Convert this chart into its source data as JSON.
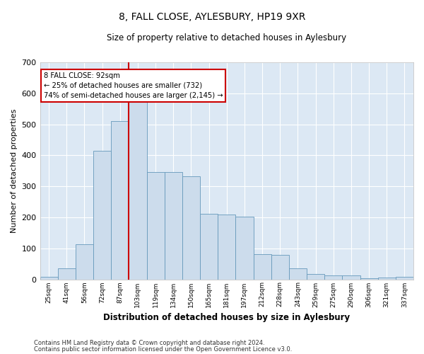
{
  "title": "8, FALL CLOSE, AYLESBURY, HP19 9XR",
  "subtitle": "Size of property relative to detached houses in Aylesbury",
  "xlabel": "Distribution of detached houses by size in Aylesbury",
  "ylabel": "Number of detached properties",
  "bar_color": "#ccdcec",
  "bar_edgecolor": "#6699bb",
  "background_color": "#dce8f4",
  "grid_color": "#ffffff",
  "categories": [
    "25sqm",
    "41sqm",
    "56sqm",
    "72sqm",
    "87sqm",
    "103sqm",
    "119sqm",
    "134sqm",
    "150sqm",
    "165sqm",
    "181sqm",
    "197sqm",
    "212sqm",
    "228sqm",
    "243sqm",
    "259sqm",
    "275sqm",
    "290sqm",
    "306sqm",
    "321sqm",
    "337sqm"
  ],
  "values": [
    8,
    35,
    113,
    415,
    510,
    575,
    345,
    345,
    333,
    212,
    210,
    203,
    80,
    78,
    35,
    18,
    12,
    12,
    3,
    5,
    8
  ],
  "ylim": [
    0,
    700
  ],
  "yticks": [
    0,
    100,
    200,
    300,
    400,
    500,
    600,
    700
  ],
  "vline_x": 4.5,
  "vline_color": "#cc0000",
  "annotation_text": "8 FALL CLOSE: 92sqm\n← 25% of detached houses are smaller (732)\n74% of semi-detached houses are larger (2,145) →",
  "annotation_box_color": "#ffffff",
  "annotation_box_edgecolor": "#cc0000",
  "footer1": "Contains HM Land Registry data © Crown copyright and database right 2024.",
  "footer2": "Contains public sector information licensed under the Open Government Licence v3.0."
}
